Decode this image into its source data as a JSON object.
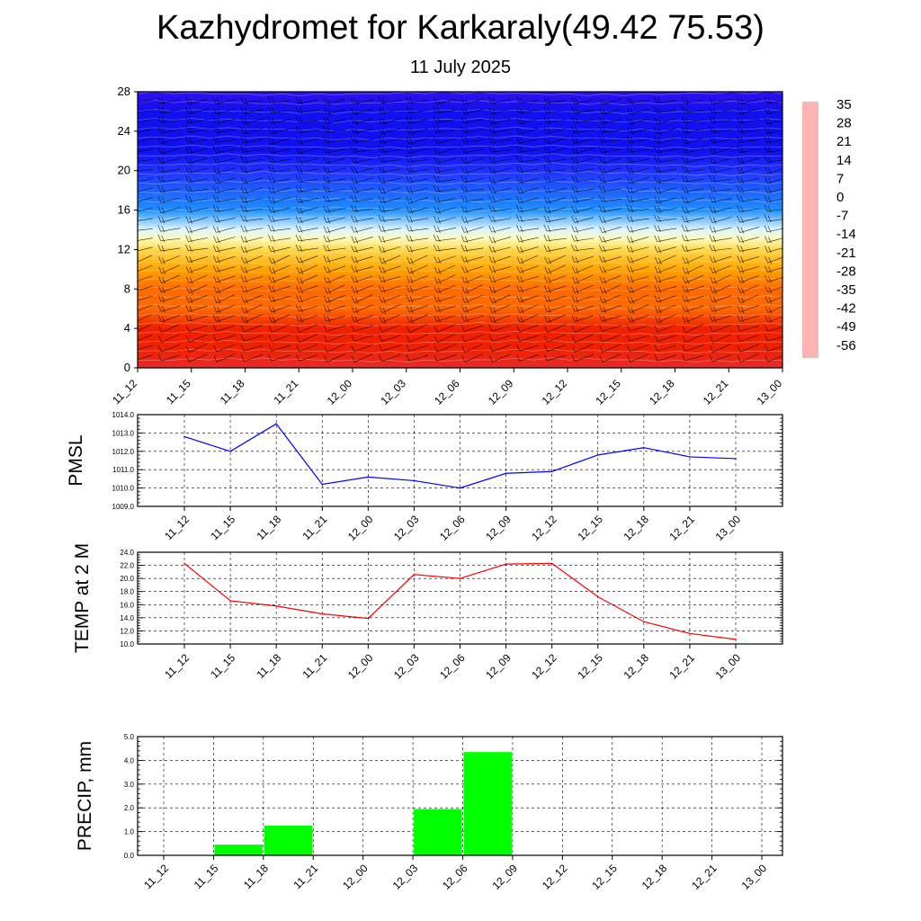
{
  "header": {
    "title": "Kazhydromet for Karkaraly(49.42 75.53)",
    "subtitle": "11 July 2025"
  },
  "colors": {
    "pmsl_line": "#0000ff",
    "temp_line": "#ff0000",
    "precip_bar": "#00ff00"
  },
  "chart_data": [
    {
      "id": "cross-section",
      "type": "heatmap",
      "title": "",
      "xlabel": "",
      "ylabel": "",
      "categories": [
        "11_12",
        "11_15",
        "11_18",
        "11_21",
        "12_00",
        "12_03",
        "12_06",
        "12_09",
        "12_12",
        "12_15",
        "12_18",
        "12_21",
        "13_00"
      ],
      "y_ticks": [
        0,
        4,
        8,
        12,
        16,
        20,
        24,
        28
      ],
      "ylim": [
        0,
        28
      ],
      "colorbar": {
        "labels": [
          "35",
          "28",
          "21",
          "14",
          "7",
          "0",
          "-7",
          "-14",
          "-21",
          "-28",
          "-35",
          "-42",
          "-49",
          "-56"
        ],
        "stops": [
          {
            "v": 38,
            "c": "#ffb3b3"
          },
          {
            "v": 30,
            "c": "#e62b2b"
          },
          {
            "v": 21,
            "c": "#f02000"
          },
          {
            "v": 14,
            "c": "#ff6a00"
          },
          {
            "v": 7,
            "c": "#ffa500"
          },
          {
            "v": 0,
            "c": "#ffd84d"
          },
          {
            "v": -7,
            "c": "#fff8b0"
          },
          {
            "v": -14,
            "c": "#dff6ff"
          },
          {
            "v": -21,
            "c": "#40c8f0"
          },
          {
            "v": -28,
            "c": "#1e90ff"
          },
          {
            "v": -35,
            "c": "#1e60ff"
          },
          {
            "v": -42,
            "c": "#2030ff"
          },
          {
            "v": -49,
            "c": "#1010f0"
          },
          {
            "v": -56,
            "c": "#3010f0"
          },
          {
            "v": -62,
            "c": "#8040ff"
          }
        ]
      },
      "temperature_profile": [
        {
          "h": 0,
          "t": 25
        },
        {
          "h": 2,
          "t": 20
        },
        {
          "h": 4,
          "t": 15
        },
        {
          "h": 6,
          "t": 11
        },
        {
          "h": 8,
          "t": 7
        },
        {
          "h": 10,
          "t": 2
        },
        {
          "h": 12,
          "t": -3
        },
        {
          "h": 13,
          "t": -14
        },
        {
          "h": 14,
          "t": -21
        },
        {
          "h": 16,
          "t": -35
        },
        {
          "h": 18,
          "t": -42
        },
        {
          "h": 20,
          "t": -47
        },
        {
          "h": 22,
          "t": -50
        },
        {
          "h": 24,
          "t": -52
        },
        {
          "h": 26,
          "t": -55
        },
        {
          "h": 28,
          "t": -57
        }
      ]
    },
    {
      "id": "pmsl",
      "type": "line",
      "ylabel": "PMSL",
      "categories": [
        "11_12",
        "11_15",
        "11_18",
        "11_21",
        "12_00",
        "12_03",
        "12_06",
        "12_09",
        "12_12",
        "12_15",
        "12_18",
        "12_21",
        "13_00"
      ],
      "values": [
        1012.8,
        1012.0,
        1013.5,
        1010.2,
        1010.6,
        1010.4,
        1010.0,
        1010.8,
        1010.9,
        1011.8,
        1012.2,
        1011.7,
        1011.6
      ],
      "ylim": [
        1009.0,
        1014.0
      ],
      "y_ticks": [
        "1009.0",
        "1010.0",
        "1011.0",
        "1012.0",
        "1013.0",
        "1014.0"
      ],
      "grid": true
    },
    {
      "id": "temp2m",
      "type": "line",
      "ylabel": "TEMP at 2 M",
      "categories": [
        "11_12",
        "11_15",
        "11_18",
        "11_21",
        "12_00",
        "12_03",
        "12_06",
        "12_09",
        "12_12",
        "12_15",
        "12_18",
        "12_21",
        "13_00"
      ],
      "values": [
        22.3,
        16.6,
        15.8,
        14.6,
        13.9,
        20.6,
        20.0,
        22.2,
        22.3,
        17.2,
        13.4,
        11.6,
        10.7
      ],
      "ylim": [
        10.0,
        24.0
      ],
      "y_ticks": [
        "10.0",
        "12.0",
        "14.0",
        "16.0",
        "18.0",
        "20.0",
        "22.0",
        "24.0"
      ],
      "grid": true
    },
    {
      "id": "precip",
      "type": "bar",
      "ylabel": "PRECIP, mm",
      "categories": [
        "11_12",
        "11_15",
        "11_18",
        "11_21",
        "12_00",
        "12_03",
        "12_06",
        "12_09",
        "12_12",
        "12_15",
        "12_18",
        "12_21",
        "13_00"
      ],
      "values": [
        0,
        0,
        0.45,
        1.25,
        0,
        0,
        1.95,
        4.35,
        0,
        0,
        0,
        0,
        0
      ],
      "ylim": [
        0.0,
        5.0
      ],
      "y_ticks": [
        "0.0",
        "1.0",
        "2.0",
        "3.0",
        "4.0",
        "5.0"
      ],
      "grid": true
    }
  ]
}
